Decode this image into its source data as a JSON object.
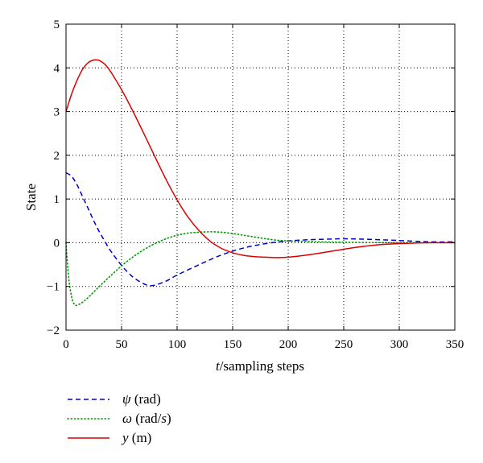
{
  "chart_data": {
    "type": "line",
    "title": "",
    "xlabel": {
      "var": "t",
      "rest": "/sampling steps"
    },
    "ylabel": "State",
    "xlim": [
      0,
      350
    ],
    "ylim": [
      -2,
      5
    ],
    "xticks": [
      0,
      50,
      100,
      150,
      200,
      250,
      300,
      350
    ],
    "yticks": [
      -2,
      -1,
      0,
      1,
      2,
      3,
      4,
      5
    ],
    "xtick_labels": [
      "0",
      "50",
      "100",
      "150",
      "200",
      "250",
      "300",
      "350"
    ],
    "ytick_labels": [
      "−2",
      "−1",
      "0",
      "1",
      "2",
      "3",
      "4",
      "5"
    ],
    "grid": true,
    "legend_position": "below",
    "series": [
      {
        "name": "ψ (rad)",
        "symbol": "ψ",
        "unit": " (rad)",
        "color": "#0000cc",
        "style": "dashed",
        "x": [
          0,
          5,
          10,
          15,
          20,
          25,
          30,
          35,
          40,
          50,
          60,
          70,
          75,
          80,
          90,
          100,
          120,
          140,
          160,
          180,
          200,
          220,
          240,
          250,
          270,
          300,
          330,
          350
        ],
        "y": [
          1.6,
          1.52,
          1.32,
          1.05,
          0.78,
          0.5,
          0.25,
          0.03,
          -0.18,
          -0.52,
          -0.78,
          -0.94,
          -0.98,
          -0.97,
          -0.88,
          -0.74,
          -0.5,
          -0.28,
          -0.12,
          -0.02,
          0.04,
          0.07,
          0.085,
          0.09,
          0.08,
          0.05,
          0.02,
          0.02
        ]
      },
      {
        "name": "ω (rad/s)",
        "symbol": "ω",
        "unit": " (rad/",
        "unit_var": "s",
        "unit_end": ")",
        "color": "#009900",
        "style": "dotted",
        "x": [
          0,
          2,
          4,
          6,
          8,
          10,
          15,
          20,
          30,
          40,
          50,
          60,
          70,
          80,
          90,
          100,
          110,
          120,
          130,
          140,
          150,
          160,
          170,
          180,
          200,
          250,
          300,
          350
        ],
        "y": [
          0.0,
          -0.7,
          -1.1,
          -1.33,
          -1.42,
          -1.43,
          -1.36,
          -1.25,
          -1.0,
          -0.76,
          -0.53,
          -0.33,
          -0.16,
          -0.02,
          0.09,
          0.17,
          0.22,
          0.24,
          0.25,
          0.24,
          0.21,
          0.17,
          0.13,
          0.09,
          0.04,
          0.01,
          0.0,
          0.0
        ]
      },
      {
        "name": "y (m)",
        "symbol": "y",
        "unit": " (m)",
        "color": "#dd0000",
        "style": "solid",
        "x": [
          0,
          5,
          10,
          15,
          20,
          25,
          28,
          30,
          35,
          40,
          50,
          60,
          70,
          80,
          90,
          100,
          110,
          120,
          130,
          140,
          150,
          160,
          170,
          180,
          190,
          200,
          220,
          240,
          260,
          280,
          300,
          330,
          350
        ],
        "y": [
          3.0,
          3.4,
          3.72,
          3.97,
          4.12,
          4.18,
          4.18,
          4.17,
          4.08,
          3.92,
          3.5,
          3.02,
          2.5,
          1.97,
          1.45,
          0.98,
          0.58,
          0.27,
          0.03,
          -0.13,
          -0.23,
          -0.29,
          -0.32,
          -0.33,
          -0.34,
          -0.33,
          -0.27,
          -0.19,
          -0.11,
          -0.05,
          -0.02,
          0.0,
          0.0
        ]
      }
    ]
  }
}
